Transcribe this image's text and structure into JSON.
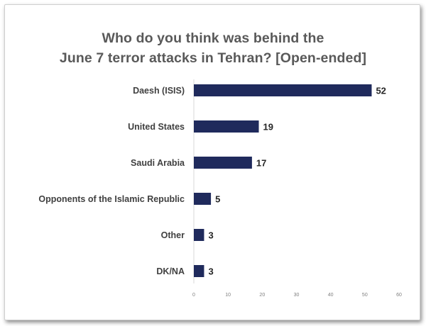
{
  "chart_data": {
    "type": "bar",
    "orientation": "horizontal",
    "title_lines": [
      "Who do you think was behind the",
      "June 7 terror attacks in Tehran? [Open-ended]"
    ],
    "categories": [
      "Daesh (ISIS)",
      "United States",
      "Saudi Arabia",
      "Opponents of the Islamic Republic",
      "Other",
      "DK/NA"
    ],
    "values": [
      52,
      19,
      17,
      5,
      3,
      3
    ],
    "xlim": [
      0,
      60
    ],
    "xticks": [
      0,
      10,
      20,
      30,
      40,
      50,
      60
    ],
    "grid": false,
    "legend": "none",
    "bar_color": "#1f2a5c"
  }
}
